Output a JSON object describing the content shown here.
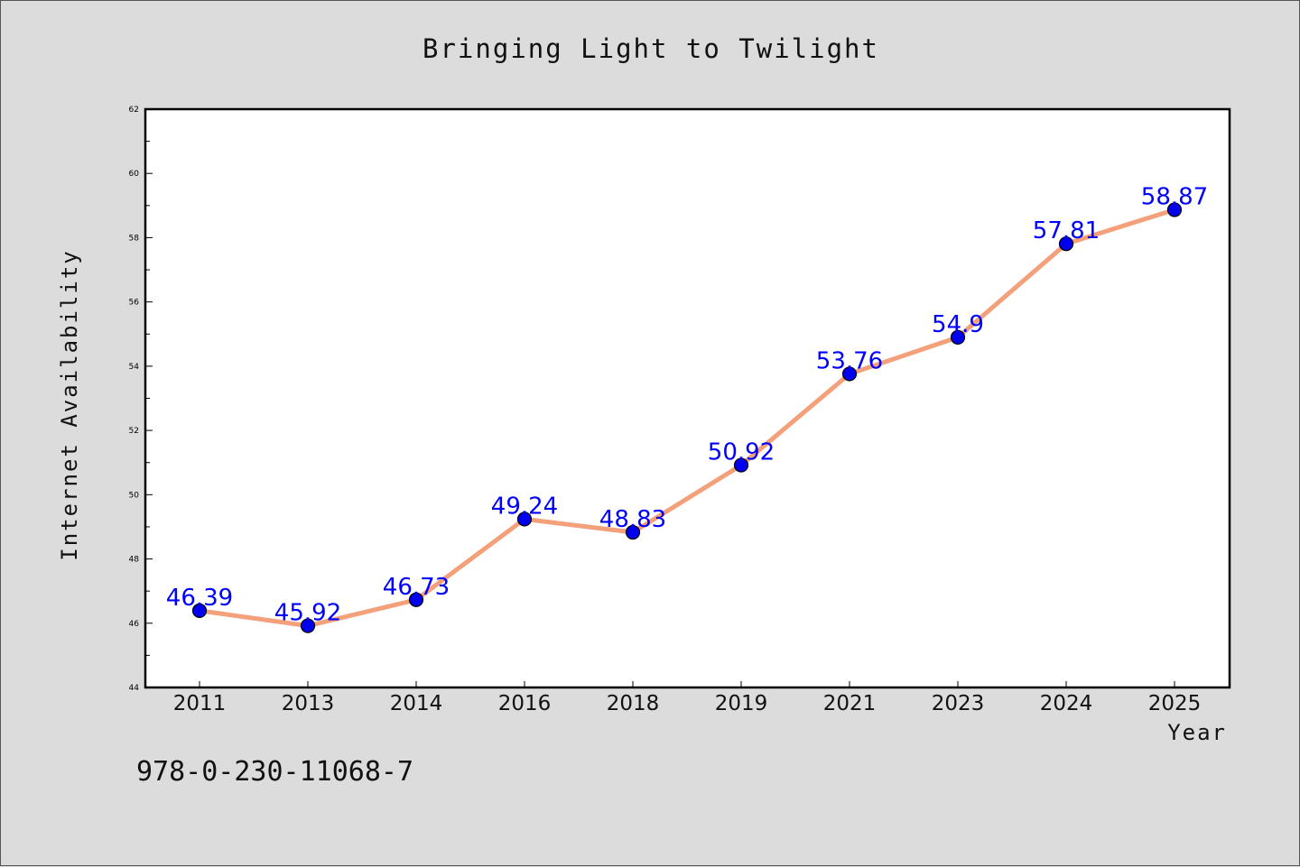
{
  "chart_data": {
    "type": "line",
    "title": "Bringing Light to Twilight",
    "xlabel": "Year",
    "ylabel": "Internet Availability",
    "categories": [
      "2011",
      "2013",
      "2014",
      "2016",
      "2018",
      "2019",
      "2021",
      "2023",
      "2024",
      "2025"
    ],
    "series": [
      {
        "values": [
          46.39,
          45.92,
          46.73,
          49.24,
          48.83,
          50.92,
          53.76,
          54.9,
          57.81,
          58.87
        ],
        "data_labels": [
          "46.39",
          "45.92",
          "46.73",
          "49.24",
          "48.83",
          "50.92",
          "53.76",
          "54.9",
          "57.81",
          "58.87"
        ]
      }
    ],
    "ylim": [
      44,
      62
    ],
    "yticks": [
      "44",
      "46",
      "48",
      "50",
      "52",
      "54",
      "56",
      "58",
      "60",
      "62"
    ],
    "grid": false,
    "legend": "none",
    "colors": {
      "line": "#f4a07a",
      "marker": "#0000ee",
      "label": "#0000ff",
      "background": "#dcdcdc",
      "plot_background": "#ffffff"
    }
  },
  "footer": {
    "code": "978-0-230-11068-7"
  }
}
